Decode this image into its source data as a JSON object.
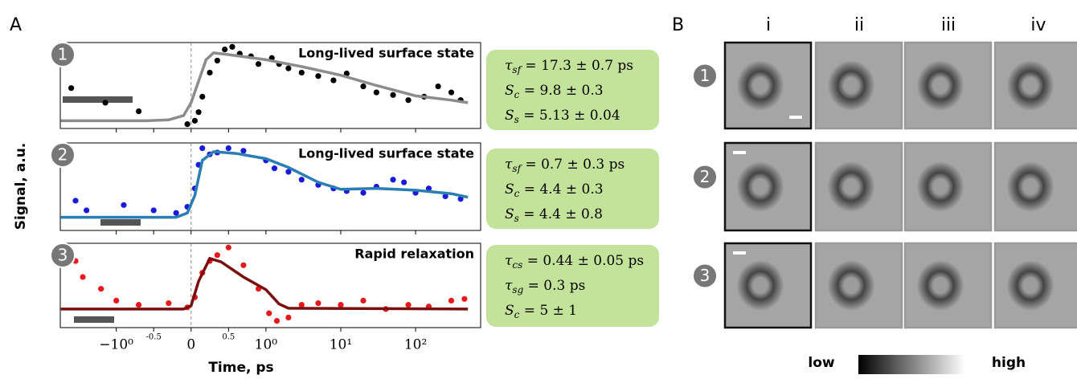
{
  "panel_a_label": "A",
  "panel_b_label": "B",
  "y_label": "Signal, a.u.",
  "x_label": "Time, ps",
  "chart_data": [
    {
      "type": "scatter",
      "badge": "1",
      "annotation": "Long-lived surface state",
      "xscale": "symlog",
      "xlim": [
        -5.6,
        740
      ],
      "ylim": [
        0,
        1
      ],
      "xticks": [
        {
          "value": -1,
          "label": "−10⁰"
        },
        -0.5,
        0,
        0.5,
        {
          "value": 1,
          "label": "10⁰"
        },
        {
          "value": 10,
          "label": "10¹"
        },
        {
          "value": 100,
          "label": "10²"
        }
      ],
      "params": [
        {
          "symbol": "τ",
          "sub": "sf",
          "rest": " = 17.3 ± 0.7 ps"
        },
        {
          "symbol": "S",
          "sub": "c",
          "rest": " = 9.8 ± 0.3"
        },
        {
          "symbol": "S",
          "sub": "s",
          "rest": " = 5.13 ± 0.04"
        }
      ],
      "series": [
        {
          "type": "scatter",
          "color": "#000000",
          "x": [
            -4,
            -1.4,
            -0.7,
            -0.05,
            0.05,
            0.1,
            0.15,
            0.25,
            0.35,
            0.45,
            0.55,
            0.65,
            0.8,
            0.9,
            1.2,
            1.5,
            2,
            3,
            5,
            8,
            12,
            20,
            30,
            50,
            80,
            130,
            200,
            300,
            400
          ],
          "values": [
            0.47,
            0.3,
            0.2,
            0.05,
            0.09,
            0.19,
            0.37,
            0.65,
            0.79,
            0.92,
            0.95,
            0.87,
            0.84,
            0.75,
            0.82,
            0.75,
            0.7,
            0.65,
            0.61,
            0.56,
            0.64,
            0.49,
            0.42,
            0.39,
            0.33,
            0.37,
            0.49,
            0.42,
            0.33
          ]
        },
        {
          "type": "line",
          "color": "#8c8c8c",
          "x": [
            -5.5,
            -0.6,
            -0.3,
            -0.1,
            0,
            0.1,
            0.2,
            0.3,
            0.5,
            1,
            3,
            10,
            30,
            100,
            300,
            500
          ],
          "values": [
            0.09,
            0.09,
            0.1,
            0.15,
            0.3,
            0.55,
            0.8,
            0.88,
            0.86,
            0.8,
            0.72,
            0.62,
            0.5,
            0.38,
            0.33,
            0.3
          ]
        }
      ]
    },
    {
      "type": "scatter",
      "badge": "2",
      "annotation": "Long-lived surface state",
      "xscale": "symlog",
      "xlim": [
        -5.6,
        740
      ],
      "ylim": [
        0,
        1
      ],
      "xticks": [
        {
          "value": -1,
          "label": "−10⁰"
        },
        -0.5,
        0,
        0.5,
        {
          "value": 1,
          "label": "10⁰"
        },
        {
          "value": 10,
          "label": "10¹"
        },
        {
          "value": 100,
          "label": "10²"
        }
      ],
      "params": [
        {
          "symbol": "τ",
          "sub": "sf",
          "rest": " = 0.7 ± 0.3 ps"
        },
        {
          "symbol": "S",
          "sub": "c",
          "rest": " = 4.4 ± 0.3"
        },
        {
          "symbol": "S",
          "sub": "s",
          "rest": " = 4.4 ± 0.8"
        }
      ],
      "series": [
        {
          "type": "scatter",
          "color": "#1a1adb",
          "x": [
            -3.5,
            -2.5,
            -0.9,
            -0.5,
            -0.2,
            -0.05,
            0.05,
            0.1,
            0.15,
            0.25,
            0.35,
            0.5,
            0.7,
            1,
            1.3,
            2,
            3,
            5,
            8,
            12,
            20,
            30,
            50,
            70,
            100,
            150,
            250,
            400
          ],
          "values": [
            0.34,
            0.23,
            0.29,
            0.23,
            0.2,
            0.27,
            0.48,
            0.75,
            0.94,
            0.87,
            0.89,
            0.94,
            0.91,
            0.8,
            0.71,
            0.67,
            0.58,
            0.52,
            0.48,
            0.45,
            0.43,
            0.5,
            0.58,
            0.55,
            0.43,
            0.48,
            0.39,
            0.36
          ]
        },
        {
          "type": "line",
          "color": "#2a7db5",
          "x": [
            -5.5,
            -0.2,
            -0.05,
            0.05,
            0.15,
            0.3,
            0.6,
            1,
            2,
            5,
            10,
            30,
            100,
            300,
            500
          ],
          "values": [
            0.15,
            0.15,
            0.2,
            0.4,
            0.8,
            0.9,
            0.88,
            0.82,
            0.72,
            0.55,
            0.47,
            0.48,
            0.46,
            0.42,
            0.38
          ]
        }
      ]
    },
    {
      "type": "scatter",
      "badge": "3",
      "annotation": "Rapid relaxation",
      "xscale": "symlog",
      "xlim": [
        -5.6,
        740
      ],
      "ylim": [
        0,
        1
      ],
      "xticks": [
        {
          "value": -1,
          "label": "−10⁰"
        },
        -0.5,
        0,
        0.5,
        {
          "value": 1,
          "label": "10⁰"
        },
        {
          "value": 10,
          "label": "10¹"
        },
        {
          "value": 100,
          "label": "10²"
        }
      ],
      "params": [
        {
          "symbol": "τ",
          "sub": "cs",
          "rest": " = 0.44 ± 0.05 ps"
        },
        {
          "symbol": "τ",
          "sub": "sg",
          "rest": " = 0.3 ps"
        },
        {
          "symbol": "S",
          "sub": "c",
          "rest": " = 5 ± 1"
        }
      ],
      "series": [
        {
          "type": "scatter",
          "color": "#e8191b",
          "x": [
            -3.5,
            -2.8,
            -1.6,
            -1,
            -0.7,
            -0.3,
            -0.05,
            0.05,
            0.15,
            0.25,
            0.35,
            0.5,
            0.7,
            0.9,
            1.1,
            1.4,
            2,
            3,
            5,
            10,
            20,
            40,
            80,
            150,
            300,
            450
          ],
          "values": [
            0.79,
            0.6,
            0.46,
            0.32,
            0.27,
            0.29,
            0.24,
            0.36,
            0.65,
            0.79,
            0.86,
            0.95,
            0.74,
            0.46,
            0.17,
            0.08,
            0.12,
            0.27,
            0.29,
            0.27,
            0.32,
            0.22,
            0.27,
            0.25,
            0.32,
            0.34
          ]
        },
        {
          "type": "line",
          "color": "#7a0f0f",
          "x": [
            -5.5,
            -0.1,
            0,
            0.1,
            0.25,
            0.4,
            0.7,
            1,
            1.5,
            2,
            500
          ],
          "values": [
            0.22,
            0.22,
            0.26,
            0.55,
            0.82,
            0.78,
            0.6,
            0.45,
            0.28,
            0.23,
            0.22
          ]
        }
      ]
    }
  ],
  "panel_b": {
    "columns": [
      "i",
      "ii",
      "iii",
      "iv"
    ],
    "rows": [
      "1",
      "2",
      "3"
    ],
    "scale_low": "low",
    "scale_high": "high"
  }
}
